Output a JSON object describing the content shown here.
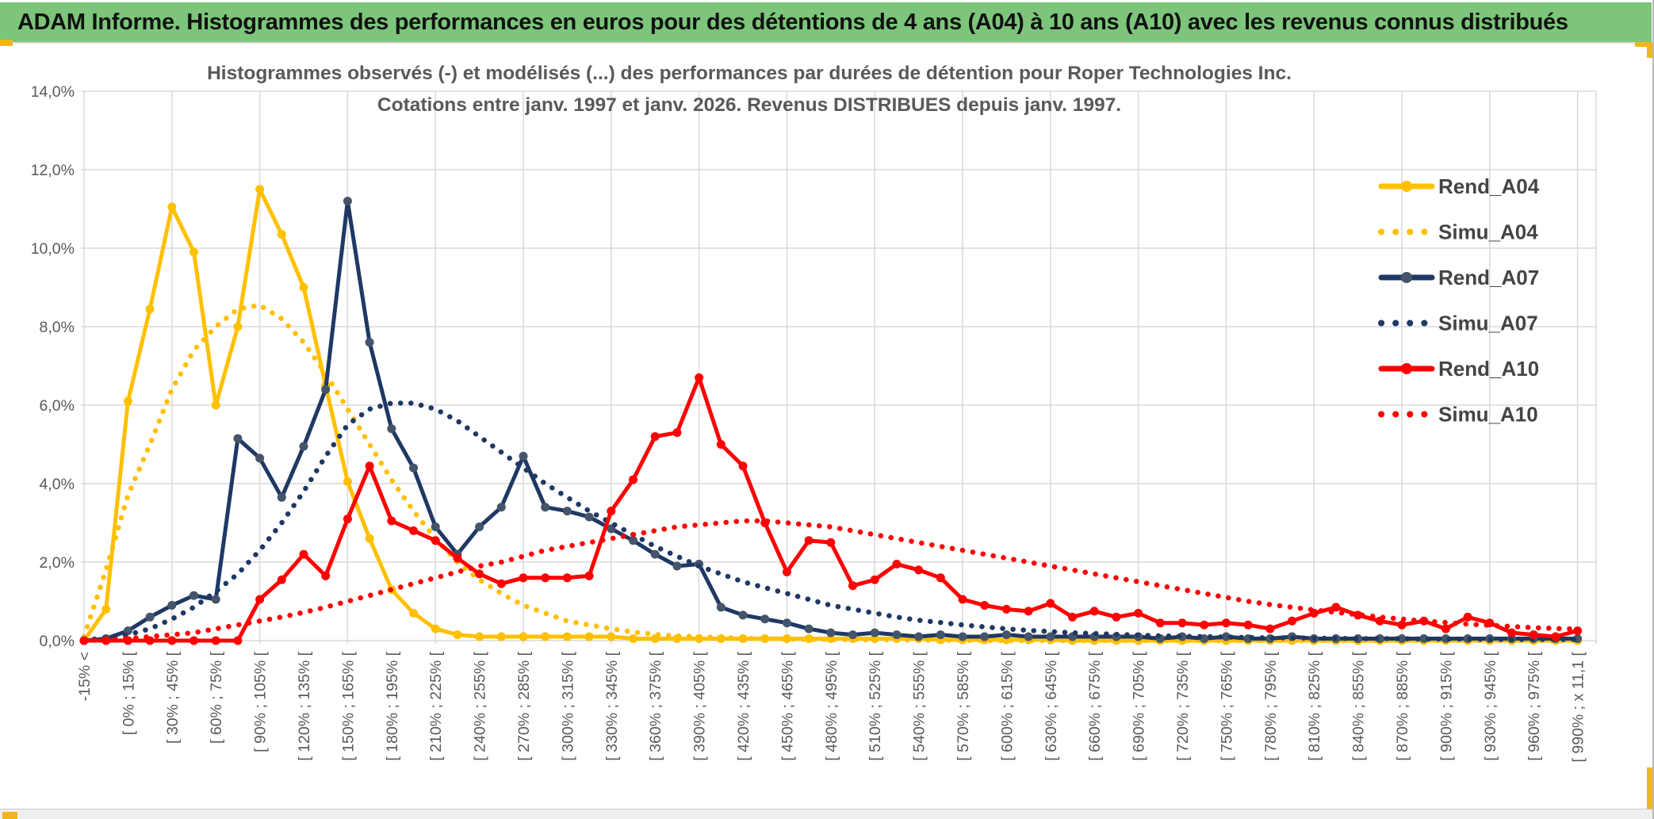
{
  "header": {
    "title": "ADAM Informe. Histogrammes des performances en euros pour des détentions de 4 ans (A04) à 10 ans (A10) avec les revenus connus distribués"
  },
  "colors": {
    "header_green": "#7CC57A",
    "accent_gold": "#F0B51D",
    "grid": "#D9D9D9",
    "axis_text": "#595959",
    "title_text": "#595959",
    "legend_text": "#444444",
    "series_yellow": "#FFC000",
    "series_navy": "#1F3864",
    "series_navy_marker": "#44546A",
    "series_red": "#FF0000"
  },
  "chart_data": {
    "type": "line",
    "title_line1": "Histogrammes observés (-) et modélisés (...) des performances par durées de détention pour Roper Technologies Inc.",
    "title_line2": "Cotations entre janv. 1997 et janv. 2026. Revenus DISTRIBUES depuis janv. 1997.",
    "ylim": [
      0,
      14
    ],
    "y_ticks": [
      "0,0%",
      "2,0%",
      "4,0%",
      "6,0%",
      "8,0%",
      "10,0%",
      "12,0%",
      "14,0%"
    ],
    "grid": true,
    "legend_position": "right",
    "bins": 69,
    "label_every_n_bins": 2,
    "x_tick_labels": [
      "-15% <",
      "[ 0% ; 15% [",
      "[ 30% ; 45% [",
      "[ 60% ; 75% [",
      "[ 90% ; 105% [",
      "[ 120% ; 135% [",
      "[ 150% ; 165% [",
      "[ 180% ; 195% [",
      "[ 210% ; 225% [",
      "[ 240% ; 255% [",
      "[ 270% ; 285% [",
      "[ 300% ; 315% [",
      "[ 330% ; 345% [",
      "[ 360% ; 375% [",
      "[ 390% ; 405% [",
      "[ 420% ; 435% [",
      "[ 450% ; 465% [",
      "[ 480% ; 495% [",
      "[ 510% ; 525% [",
      "[ 540% ; 555% [",
      "[ 570% ; 585% [",
      "[ 600% ; 615% [",
      "[ 630% ; 645% [",
      "[ 660% ; 675% [",
      "[ 690% ; 705% [",
      "[ 720% ; 735% [",
      "[ 750% ; 765% [",
      "[ 780% ; 795% [",
      "[ 810% ; 825% [",
      "[ 840% ; 855% [",
      "[ 870% ; 885% [",
      "[ 900% ; 915% [",
      "[ 930% ; 945% [",
      "[ 960% ; 975% [",
      "[ 990% ; x 11,1 ["
    ],
    "series": [
      {
        "name": "Rend_A04",
        "style": "solid",
        "color": "#FFC000",
        "marker_color": "#FFC000",
        "values": [
          0,
          0.8,
          6.1,
          8.45,
          11.05,
          9.9,
          6.0,
          8.0,
          11.5,
          10.35,
          9.0,
          6.5,
          4.05,
          2.6,
          1.3,
          0.7,
          0.3,
          0.15,
          0.1,
          0.1,
          0.1,
          0.1,
          0.1,
          0.1,
          0.1,
          0.05,
          0.05,
          0.05,
          0.05,
          0.05,
          0.05,
          0.05,
          0.05,
          0.05,
          0.05,
          0.05,
          0.05,
          0.05,
          0.05,
          0.02,
          0.02,
          0.02,
          0.02,
          0.02,
          0.02,
          0,
          0,
          0,
          0,
          0,
          0,
          0,
          0,
          0,
          0,
          0,
          0,
          0,
          0,
          0,
          0,
          0,
          0,
          0,
          0,
          0,
          0,
          0,
          0
        ]
      },
      {
        "name": "Simu_A04",
        "style": "dotted",
        "color": "#FFC000",
        "values": [
          0.1,
          1.8,
          3.7,
          5.0,
          6.4,
          7.4,
          8.0,
          8.45,
          8.55,
          8.2,
          7.6,
          6.8,
          5.9,
          5.0,
          4.1,
          3.3,
          2.6,
          2.0,
          1.55,
          1.2,
          0.9,
          0.7,
          0.5,
          0.4,
          0.3,
          0.22,
          0.16,
          0.12,
          0.1,
          0.08,
          0.06,
          0.05,
          0.04,
          0.03,
          0.03,
          0.02,
          0.02,
          0.02,
          0.01,
          0.01,
          0.01,
          0,
          0,
          0,
          0,
          0,
          0,
          0,
          0,
          0,
          0,
          0,
          0,
          0,
          0,
          0,
          0,
          0,
          0,
          0,
          0,
          0,
          0,
          0,
          0,
          0,
          0,
          0,
          0
        ]
      },
      {
        "name": "Rend_A07",
        "style": "solid",
        "color": "#1F3864",
        "marker_color": "#44546A",
        "values": [
          0,
          0.05,
          0.25,
          0.6,
          0.9,
          1.15,
          1.05,
          5.15,
          4.65,
          3.65,
          4.95,
          6.4,
          11.2,
          7.6,
          5.4,
          4.4,
          2.9,
          2.2,
          2.9,
          3.4,
          4.7,
          3.4,
          3.3,
          3.15,
          2.85,
          2.55,
          2.2,
          1.9,
          1.95,
          0.85,
          0.65,
          0.55,
          0.45,
          0.3,
          0.2,
          0.15,
          0.2,
          0.15,
          0.1,
          0.15,
          0.1,
          0.1,
          0.15,
          0.1,
          0.1,
          0.1,
          0.1,
          0.1,
          0.1,
          0.05,
          0.1,
          0.05,
          0.1,
          0.05,
          0.05,
          0.1,
          0.05,
          0.05,
          0.05,
          0.05,
          0.05,
          0.05,
          0.05,
          0.05,
          0.05,
          0.05,
          0.05,
          0.05,
          0.05
        ]
      },
      {
        "name": "Simu_A07",
        "style": "dotted",
        "color": "#1F3864",
        "values": [
          0.02,
          0.06,
          0.15,
          0.3,
          0.55,
          0.85,
          1.25,
          1.7,
          2.3,
          3.0,
          3.8,
          4.7,
          5.5,
          5.9,
          6.05,
          6.05,
          5.9,
          5.6,
          5.2,
          4.8,
          4.4,
          4.0,
          3.65,
          3.3,
          3.0,
          2.7,
          2.4,
          2.15,
          1.9,
          1.7,
          1.5,
          1.35,
          1.2,
          1.05,
          0.9,
          0.8,
          0.7,
          0.6,
          0.52,
          0.46,
          0.4,
          0.35,
          0.3,
          0.26,
          0.23,
          0.2,
          0.18,
          0.16,
          0.14,
          0.12,
          0.11,
          0.1,
          0.09,
          0.08,
          0.07,
          0.07,
          0.06,
          0.06,
          0.05,
          0.05,
          0.05,
          0.04,
          0.04,
          0.04,
          0.03,
          0.03,
          0.03,
          0.03,
          0.03
        ]
      },
      {
        "name": "Rend_A10",
        "style": "solid",
        "color": "#FF0000",
        "marker_color": "#FF0000",
        "values": [
          0,
          0,
          0,
          0,
          0,
          0,
          0,
          0,
          1.05,
          1.55,
          2.2,
          1.65,
          3.1,
          4.45,
          3.05,
          2.8,
          2.55,
          2.1,
          1.7,
          1.45,
          1.6,
          1.6,
          1.6,
          1.65,
          3.3,
          4.1,
          5.2,
          5.3,
          6.7,
          5.0,
          4.45,
          3.0,
          1.75,
          2.55,
          2.5,
          1.4,
          1.55,
          1.95,
          1.8,
          1.6,
          1.05,
          0.9,
          0.8,
          0.75,
          0.95,
          0.6,
          0.75,
          0.6,
          0.7,
          0.45,
          0.45,
          0.4,
          0.45,
          0.4,
          0.3,
          0.5,
          0.7,
          0.85,
          0.65,
          0.5,
          0.4,
          0.5,
          0.3,
          0.6,
          0.45,
          0.2,
          0.15,
          0.1,
          0.25
        ]
      },
      {
        "name": "Simu_A10",
        "style": "dotted",
        "color": "#FF0000",
        "values": [
          0,
          0.02,
          0.05,
          0.1,
          0.15,
          0.2,
          0.3,
          0.4,
          0.5,
          0.6,
          0.72,
          0.85,
          1.0,
          1.15,
          1.3,
          1.45,
          1.6,
          1.75,
          1.9,
          2.0,
          2.15,
          2.3,
          2.4,
          2.5,
          2.6,
          2.7,
          2.8,
          2.9,
          2.95,
          3.0,
          3.05,
          3.05,
          3.0,
          2.95,
          2.9,
          2.8,
          2.7,
          2.6,
          2.5,
          2.4,
          2.3,
          2.2,
          2.1,
          2.0,
          1.9,
          1.8,
          1.7,
          1.6,
          1.5,
          1.4,
          1.3,
          1.2,
          1.1,
          1.0,
          0.92,
          0.85,
          0.78,
          0.72,
          0.66,
          0.6,
          0.55,
          0.5,
          0.46,
          0.42,
          0.39,
          0.36,
          0.33,
          0.31,
          0.29
        ]
      }
    ]
  }
}
